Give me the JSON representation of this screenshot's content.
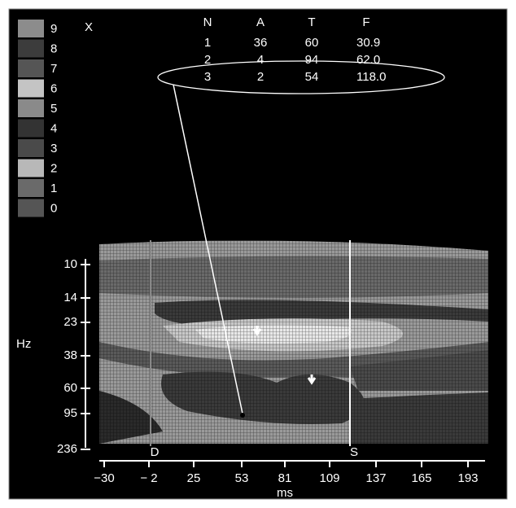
{
  "legend": {
    "labels": [
      "9",
      "8",
      "7",
      "6",
      "5",
      "4",
      "3",
      "2",
      "1",
      "0"
    ],
    "title": "X"
  },
  "table": {
    "header": [
      "N",
      "A",
      "T",
      "F"
    ],
    "rows": [
      [
        "1",
        "36",
        "60",
        "30.9"
      ],
      [
        "2",
        "4",
        "94",
        "62.0"
      ],
      [
        "3",
        "2",
        "54",
        "118.0"
      ]
    ]
  },
  "y_axis": {
    "label": "Hz",
    "ticks": [
      "10",
      "14",
      "23",
      "38",
      "60",
      "95",
      "236"
    ]
  },
  "x_axis": {
    "label": "ms",
    "ticks": [
      "−30",
      "− 2",
      "25",
      "53",
      "81",
      "109",
      "137",
      "165",
      "193"
    ]
  },
  "markers": [
    "D",
    "S"
  ]
}
